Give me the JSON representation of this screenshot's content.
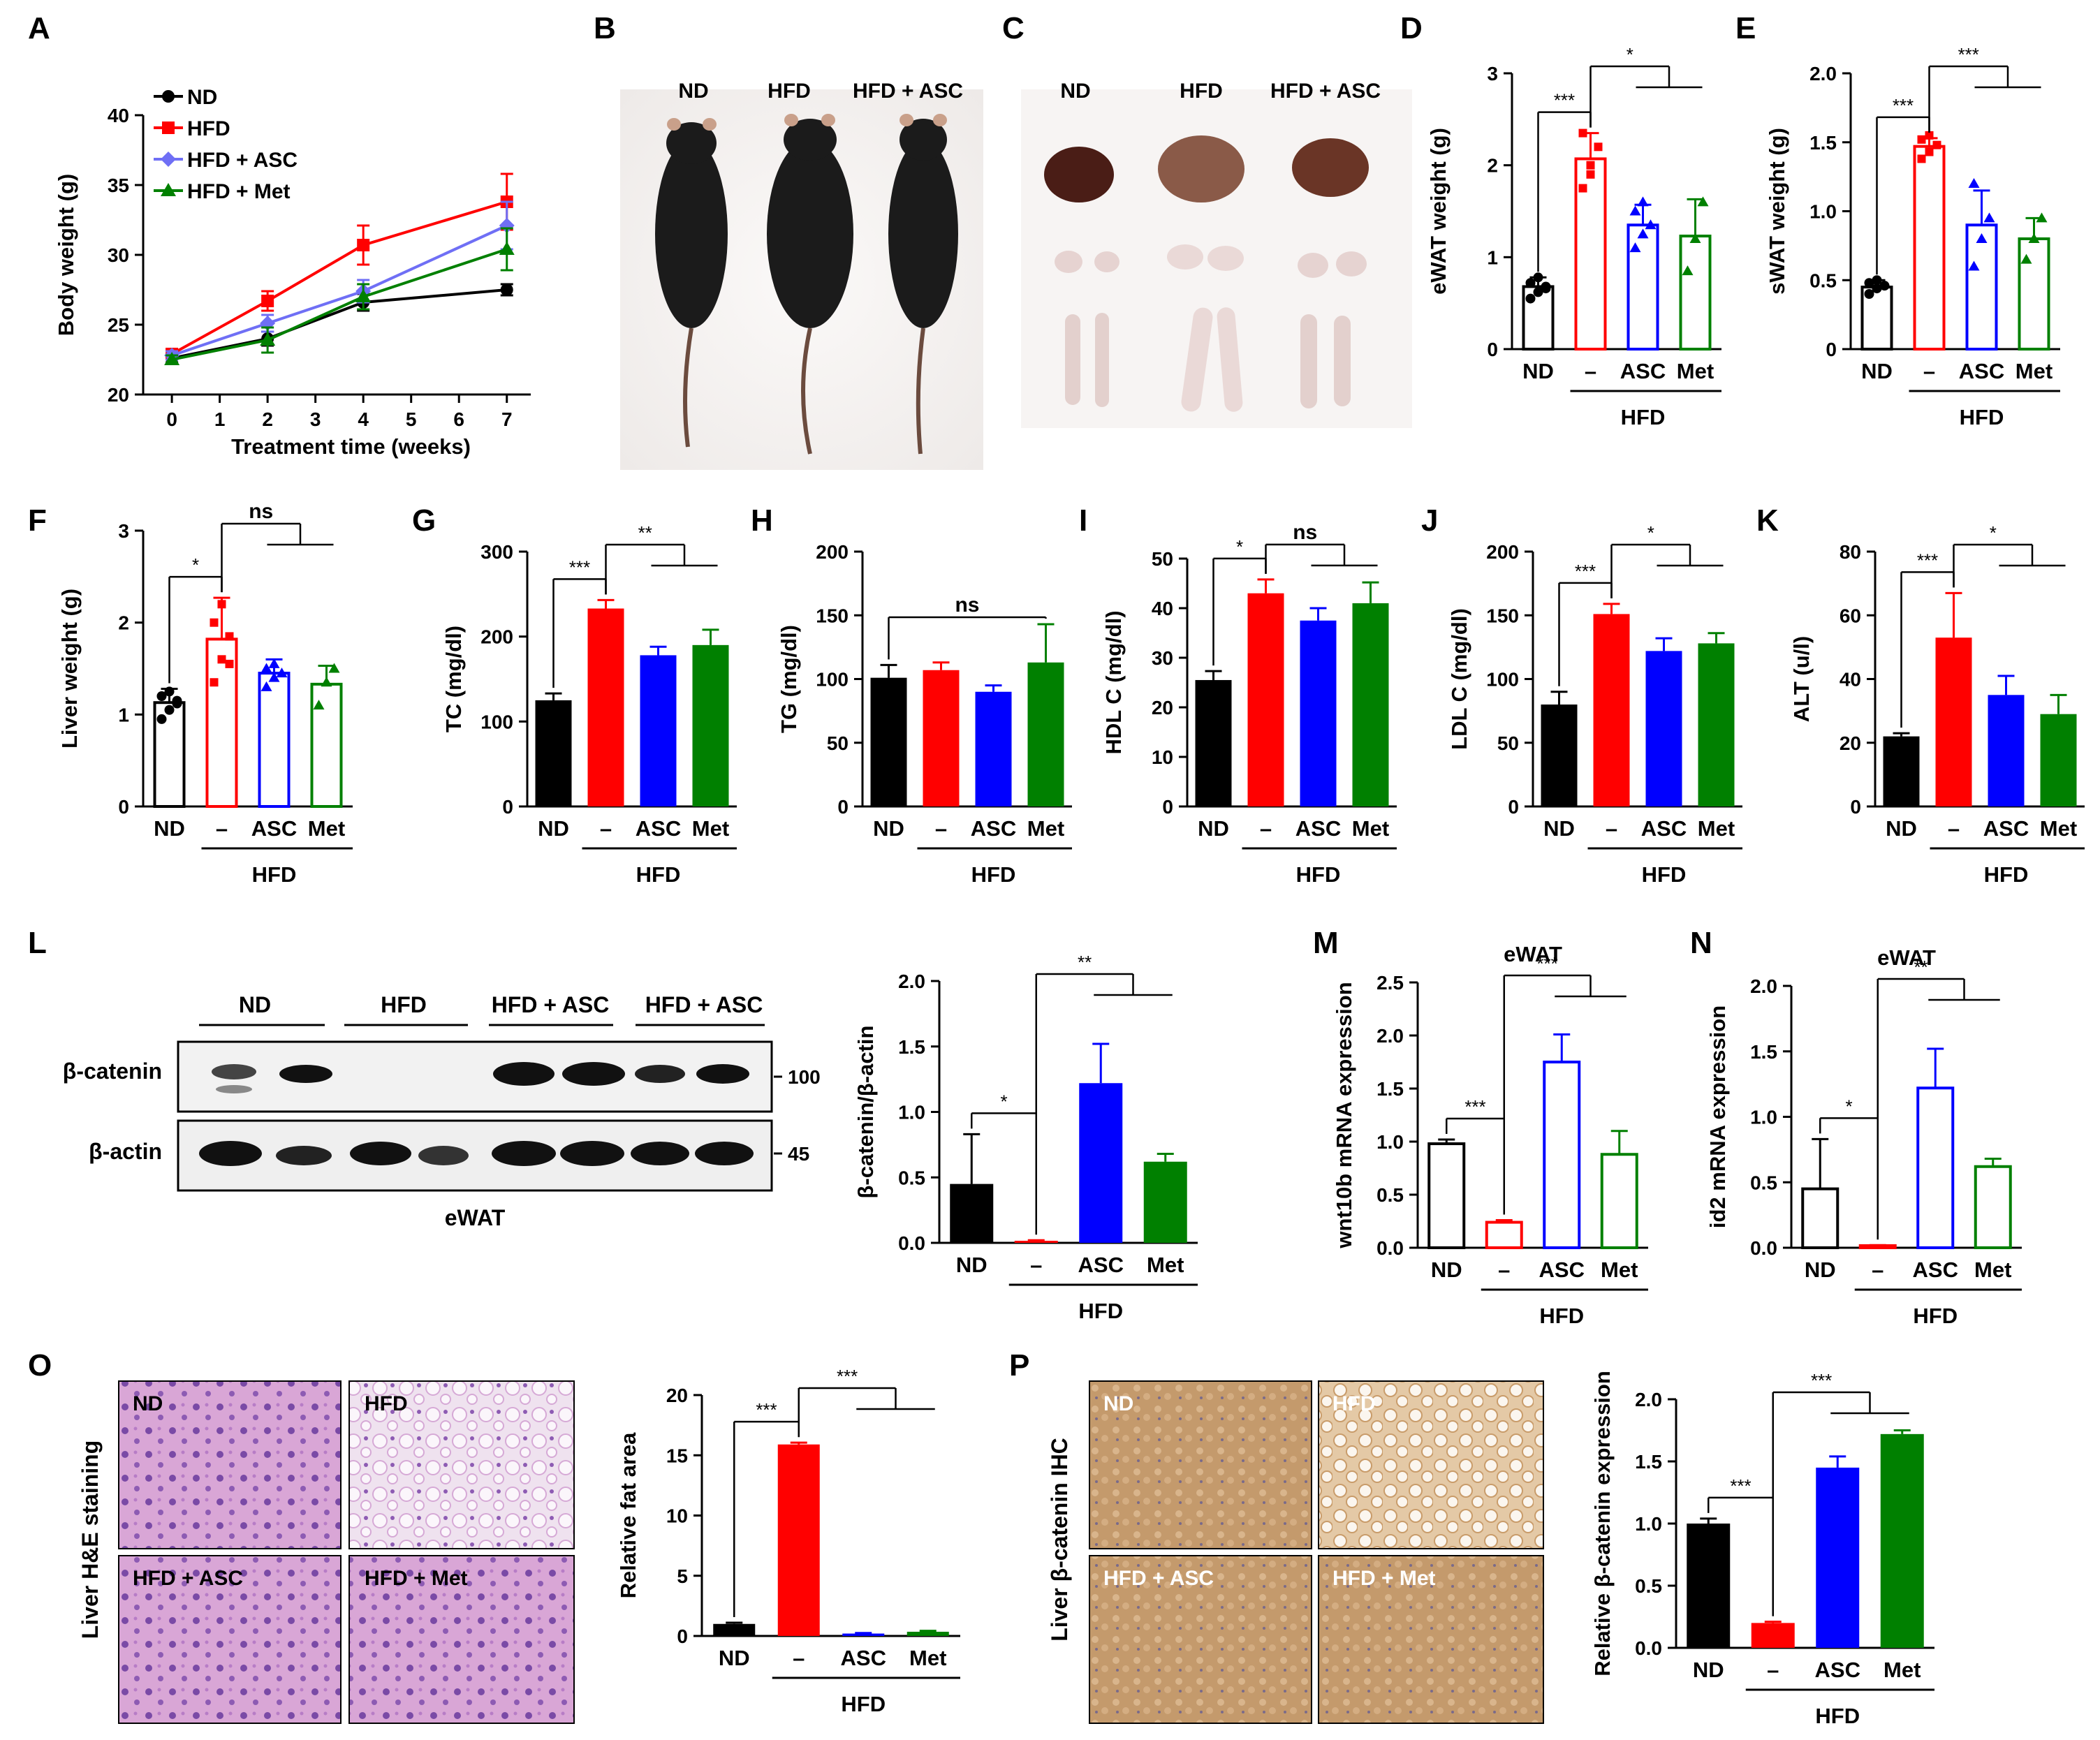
{
  "colors": {
    "black": "#000000",
    "red": "#ff0000",
    "blue": "#0000ff",
    "lightblue": "#7b7bff",
    "green": "#008000",
    "lightgreen": "#3aa83a",
    "periwinkle": "#6f6ff5"
  },
  "panel_A": {
    "letter": "A",
    "legend": [
      "ND",
      "HFD",
      "HFD + ASC",
      "HFD + Met"
    ]
  },
  "panel_B": {
    "letter": "B",
    "labels": [
      "ND",
      "HFD",
      "HFD + ASC"
    ]
  },
  "panel_C": {
    "letter": "C",
    "labels": [
      "ND",
      "HFD",
      "HFD + ASC"
    ]
  },
  "panel_L": {
    "letter": "L",
    "group_labels": [
      "ND",
      "HFD",
      "HFD + ASC",
      "HFD + ASC"
    ],
    "rows": [
      "β-catenin",
      "β-actin"
    ],
    "markers": [
      "100",
      "45"
    ],
    "tissue": "eWAT"
  },
  "panel_O": {
    "letter": "O",
    "side_label": "Liver H&E staining",
    "tiles": [
      "ND",
      "HFD",
      "HFD + ASC",
      "HFD + Met"
    ]
  },
  "panel_P": {
    "letter": "P",
    "side_label": "Liver β-catenin IHC",
    "tiles": [
      "ND",
      "HFD",
      "HFD + ASC",
      "HFD + Met"
    ]
  },
  "chart_data": [
    {
      "id": "A",
      "type": "line",
      "title": "",
      "xlabel": "Treatment time (weeks)",
      "ylabel": "Body weight (g)",
      "x": [
        0,
        2,
        4,
        7
      ],
      "xticks": [
        0,
        1,
        2,
        3,
        4,
        5,
        6,
        7
      ],
      "ylim": [
        20,
        40
      ],
      "yticks": [
        20,
        25,
        30,
        35,
        40
      ],
      "series": [
        {
          "name": "ND",
          "color": "#000000",
          "marker": "circle",
          "values": [
            22.6,
            24.0,
            26.6,
            27.5
          ],
          "err": [
            0.3,
            0.5,
            0.6,
            0.4
          ]
        },
        {
          "name": "HFD",
          "color": "#ff0000",
          "marker": "square",
          "values": [
            22.9,
            26.7,
            30.7,
            33.8
          ],
          "err": [
            0.3,
            0.7,
            1.4,
            2.0
          ]
        },
        {
          "name": "HFD + ASC",
          "color": "#6f6ff5",
          "marker": "diamond",
          "values": [
            22.8,
            25.1,
            27.4,
            32.1
          ],
          "err": [
            0.3,
            0.6,
            0.8,
            1.7
          ]
        },
        {
          "name": "HFD + Met",
          "color": "#008000",
          "marker": "triangle",
          "values": [
            22.5,
            23.9,
            27.0,
            30.4
          ],
          "err": [
            0.3,
            0.9,
            0.9,
            1.5
          ]
        }
      ]
    },
    {
      "id": "D",
      "type": "bar",
      "ylabel": "eWAT weight (g)",
      "categories": [
        "ND",
        "–",
        "ASC",
        "Met"
      ],
      "group": "HFD",
      "ylim": [
        0,
        3
      ],
      "yticks": [
        "0",
        "1",
        "2",
        "3"
      ],
      "hollow": true,
      "values": [
        0.68,
        2.07,
        1.35,
        1.23
      ],
      "err": [
        0.1,
        0.28,
        0.22,
        0.4
      ],
      "points": [
        [
          0.55,
          0.62,
          0.68,
          0.72,
          0.78,
          0.66
        ],
        [
          1.75,
          2.0,
          2.2,
          2.35,
          1.9
        ],
        [
          1.1,
          1.25,
          1.35,
          1.5,
          1.6
        ],
        [
          0.85,
          1.2,
          1.6
        ]
      ],
      "sig": [
        {
          "a": 0,
          "b": 1,
          "label": "***"
        },
        {
          "a": 1,
          "b": [
            2,
            3
          ],
          "label": "*"
        }
      ]
    },
    {
      "id": "E",
      "type": "bar",
      "ylabel": "sWAT weight (g)",
      "categories": [
        "ND",
        "–",
        "ASC",
        "Met"
      ],
      "group": "HFD",
      "ylim": [
        0,
        2
      ],
      "yticks": [
        "0",
        "0.5",
        "1.0",
        "1.5",
        "2.0"
      ],
      "hollow": true,
      "values": [
        0.45,
        1.47,
        0.9,
        0.8
      ],
      "err": [
        0.05,
        0.06,
        0.25,
        0.15
      ],
      "points": [
        [
          0.4,
          0.44,
          0.46,
          0.48,
          0.5
        ],
        [
          1.38,
          1.43,
          1.48,
          1.52,
          1.55
        ],
        [
          0.6,
          0.8,
          0.95,
          1.2
        ],
        [
          0.65,
          0.8,
          0.95
        ]
      ],
      "sig": [
        {
          "a": 0,
          "b": 1,
          "label": "***"
        },
        {
          "a": 1,
          "b": [
            2,
            3
          ],
          "label": "***"
        }
      ]
    },
    {
      "id": "F",
      "type": "bar",
      "ylabel": "Liver weight (g)",
      "categories": [
        "ND",
        "–",
        "ASC",
        "Met"
      ],
      "group": "HFD",
      "ylim": [
        0,
        3
      ],
      "yticks": [
        "0",
        "1",
        "2",
        "3"
      ],
      "hollow": true,
      "values": [
        1.13,
        1.82,
        1.45,
        1.33
      ],
      "err": [
        0.15,
        0.45,
        0.15,
        0.2
      ],
      "points": [
        [
          0.95,
          1.05,
          1.12,
          1.2,
          1.25,
          1.15
        ],
        [
          1.35,
          1.6,
          1.85,
          2.0,
          2.2,
          1.55
        ],
        [
          1.3,
          1.4,
          1.45,
          1.5,
          1.55
        ],
        [
          1.1,
          1.35,
          1.5
        ]
      ],
      "sig": [
        {
          "a": 0,
          "b": 1,
          "label": "*"
        },
        {
          "a": 1,
          "b": [
            2,
            3
          ],
          "label": "ns"
        }
      ]
    },
    {
      "id": "G",
      "type": "bar",
      "ylabel": "TC (mg/dl)",
      "categories": [
        "ND",
        "–",
        "ASC",
        "Met"
      ],
      "group": "HFD",
      "ylim": [
        0,
        300
      ],
      "yticks": [
        "0",
        "100",
        "200",
        "300"
      ],
      "values": [
        125,
        233,
        178,
        190
      ],
      "err": [
        8,
        10,
        10,
        18
      ],
      "sig": [
        {
          "a": 0,
          "b": 1,
          "label": "***"
        },
        {
          "a": 1,
          "b": [
            2,
            3
          ],
          "label": "**"
        }
      ]
    },
    {
      "id": "H",
      "type": "bar",
      "ylabel": "TG (mg/dl)",
      "categories": [
        "ND",
        "–",
        "ASC",
        "Met"
      ],
      "group": "HFD",
      "ylim": [
        0,
        200
      ],
      "yticks": [
        "0",
        "50",
        "100",
        "150",
        "200"
      ],
      "values": [
        101,
        107,
        90,
        113
      ],
      "err": [
        10,
        6,
        5,
        30
      ],
      "sig": [
        {
          "a": 0,
          "b": 3,
          "label": "ns"
        }
      ]
    },
    {
      "id": "I",
      "type": "bar",
      "ylabel": "HDL C (mg/dl)",
      "categories": [
        "ND",
        "–",
        "ASC",
        "Met"
      ],
      "group": "HFD",
      "ylim": [
        0,
        50
      ],
      "yticks": [
        "0",
        "10",
        "20",
        "30",
        "40",
        "50"
      ],
      "values": [
        25.5,
        43,
        37.5,
        41
      ],
      "err": [
        1.8,
        2.8,
        2.5,
        4.2
      ],
      "sig": [
        {
          "a": 0,
          "b": 1,
          "label": "*"
        },
        {
          "a": 1,
          "b": [
            2,
            3
          ],
          "label": "ns"
        }
      ]
    },
    {
      "id": "J",
      "type": "bar",
      "ylabel": "LDL C (mg/dl)",
      "categories": [
        "ND",
        "–",
        "ASC",
        "Met"
      ],
      "group": "HFD",
      "ylim": [
        0,
        200
      ],
      "yticks": [
        "0",
        "50",
        "100",
        "150",
        "200"
      ],
      "values": [
        80,
        151,
        122,
        128
      ],
      "err": [
        10,
        8,
        10,
        8
      ],
      "sig": [
        {
          "a": 0,
          "b": 1,
          "label": "***"
        },
        {
          "a": 1,
          "b": [
            2,
            3
          ],
          "label": "*"
        }
      ]
    },
    {
      "id": "K",
      "type": "bar",
      "ylabel": "ALT (u/l)",
      "categories": [
        "ND",
        "–",
        "ASC",
        "Met"
      ],
      "group": "HFD",
      "ylim": [
        0,
        80
      ],
      "yticks": [
        "0",
        "20",
        "40",
        "60",
        "80"
      ],
      "values": [
        22,
        53,
        35,
        29
      ],
      "err": [
        1,
        14,
        6,
        6
      ],
      "sig": [
        {
          "a": 0,
          "b": 1,
          "label": "***"
        },
        {
          "a": 1,
          "b": [
            2,
            3
          ],
          "label": "*"
        }
      ]
    },
    {
      "id": "L",
      "type": "bar",
      "ylabel": "β-catenin/β-actin",
      "categories": [
        "ND",
        "–",
        "ASC",
        "Met"
      ],
      "group": "HFD",
      "ylim": [
        0,
        2
      ],
      "yticks": [
        "0.0",
        "0.5",
        "1.0",
        "1.5",
        "2.0"
      ],
      "values": [
        0.45,
        0.01,
        1.22,
        0.62
      ],
      "err": [
        0.38,
        0.01,
        0.3,
        0.06
      ],
      "sig": [
        {
          "a": 0,
          "b": 1,
          "label": "*"
        },
        {
          "a": 1,
          "b": [
            2,
            3
          ],
          "label": "**"
        }
      ]
    },
    {
      "id": "M",
      "type": "bar",
      "title": "eWAT",
      "ylabel": "wnt10b mRNA expression",
      "categories": [
        "ND",
        "–",
        "ASC",
        "Met"
      ],
      "group": "HFD",
      "ylim": [
        0,
        2.5
      ],
      "yticks": [
        "0.0",
        "0.5",
        "1.0",
        "1.5",
        "2.0",
        "2.5"
      ],
      "hollow": true,
      "values": [
        0.98,
        0.24,
        1.75,
        0.88
      ],
      "err": [
        0.04,
        0.02,
        0.26,
        0.22
      ],
      "sig": [
        {
          "a": 0,
          "b": 1,
          "label": "***"
        },
        {
          "a": 1,
          "b": [
            2,
            3
          ],
          "label": "***"
        }
      ]
    },
    {
      "id": "N",
      "type": "bar",
      "title": "eWAT",
      "ylabel": "id2 mRNA expression",
      "categories": [
        "ND",
        "–",
        "ASC",
        "Met"
      ],
      "group": "HFD",
      "ylim": [
        0,
        2
      ],
      "yticks": [
        "0.0",
        "0.5",
        "1.0",
        "1.5",
        "2.0"
      ],
      "hollow": true,
      "values": [
        0.45,
        0.01,
        1.22,
        0.62
      ],
      "err": [
        0.38,
        0.01,
        0.3,
        0.06
      ],
      "sig": [
        {
          "a": 0,
          "b": 1,
          "label": "*"
        },
        {
          "a": 1,
          "b": [
            2,
            3
          ],
          "label": "**"
        }
      ]
    },
    {
      "id": "O",
      "type": "bar",
      "ylabel": "Relative fat area",
      "categories": [
        "ND",
        "–",
        "ASC",
        "Met"
      ],
      "group": "HFD",
      "ylim": [
        0,
        20
      ],
      "yticks": [
        "0",
        "5",
        "10",
        "15",
        "20"
      ],
      "values": [
        1.0,
        15.9,
        0.2,
        0.35
      ],
      "err": [
        0.1,
        0.15,
        0.05,
        0.08
      ],
      "sig": [
        {
          "a": 0,
          "b": 1,
          "label": "***"
        },
        {
          "a": 1,
          "b": [
            2,
            3
          ],
          "label": "***"
        }
      ]
    },
    {
      "id": "P",
      "type": "bar",
      "ylabel": "Relative β-catenin expression",
      "categories": [
        "ND",
        "–",
        "ASC",
        "Met"
      ],
      "group": "HFD",
      "ylim": [
        0,
        2
      ],
      "yticks": [
        "0.0",
        "0.5",
        "1.0",
        "1.5",
        "2.0"
      ],
      "values": [
        1.0,
        0.2,
        1.45,
        1.72
      ],
      "err": [
        0.04,
        0.01,
        0.09,
        0.03
      ],
      "sig": [
        {
          "a": 0,
          "b": 1,
          "label": "***"
        },
        {
          "a": 1,
          "b": [
            2,
            3
          ],
          "label": "***"
        }
      ]
    }
  ]
}
